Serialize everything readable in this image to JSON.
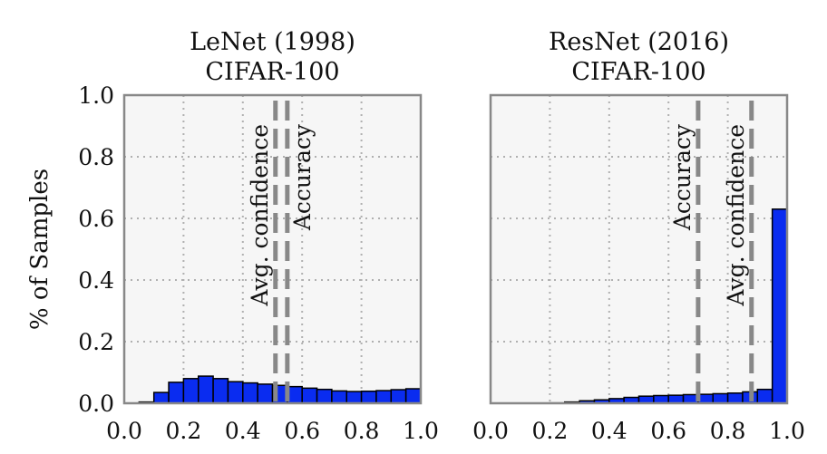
{
  "y_axis_label": "% of Samples",
  "chart_data": [
    {
      "type": "bar",
      "title_lines": [
        "LeNet (1998)",
        "CIFAR-100"
      ],
      "xlim": [
        0,
        1
      ],
      "ylim": [
        0,
        1
      ],
      "x_ticks": [
        "0.0",
        "0.2",
        "0.4",
        "0.6",
        "0.8",
        "1.0"
      ],
      "y_ticks": [
        "0.0",
        "0.2",
        "0.4",
        "0.6",
        "0.8",
        "1.0"
      ],
      "grid": true,
      "bin_width": 0.05,
      "bin_left_edges": [
        0.0,
        0.05,
        0.1,
        0.15,
        0.2,
        0.25,
        0.3,
        0.35,
        0.4,
        0.45,
        0.5,
        0.55,
        0.6,
        0.65,
        0.7,
        0.75,
        0.8,
        0.85,
        0.9,
        0.95
      ],
      "values": [
        0.0,
        0.004,
        0.035,
        0.068,
        0.08,
        0.088,
        0.08,
        0.07,
        0.066,
        0.062,
        0.058,
        0.054,
        0.049,
        0.045,
        0.04,
        0.038,
        0.039,
        0.041,
        0.044,
        0.047
      ],
      "reference_lines": [
        {
          "label": "Avg. confidence",
          "x": 0.51,
          "label_side": "left"
        },
        {
          "label": "Accuracy",
          "x": 0.55,
          "label_side": "right"
        }
      ]
    },
    {
      "type": "bar",
      "title_lines": [
        "ResNet (2016)",
        "CIFAR-100"
      ],
      "xlim": [
        0,
        1
      ],
      "ylim": [
        0,
        1
      ],
      "x_ticks": [
        "0.0",
        "0.2",
        "0.4",
        "0.6",
        "0.8",
        "1.0"
      ],
      "grid": true,
      "bin_width": 0.05,
      "bin_left_edges": [
        0.0,
        0.05,
        0.1,
        0.15,
        0.2,
        0.25,
        0.3,
        0.35,
        0.4,
        0.45,
        0.5,
        0.55,
        0.6,
        0.65,
        0.7,
        0.75,
        0.8,
        0.85,
        0.9,
        0.95
      ],
      "values": [
        0.0,
        0.0,
        0.0,
        0.0,
        0.001,
        0.004,
        0.008,
        0.011,
        0.015,
        0.019,
        0.023,
        0.025,
        0.026,
        0.028,
        0.029,
        0.031,
        0.033,
        0.037,
        0.045,
        0.63
      ],
      "reference_lines": [
        {
          "label": "Accuracy",
          "x": 0.7,
          "label_side": "left"
        },
        {
          "label": "Avg. confidence",
          "x": 0.88,
          "label_side": "left"
        }
      ]
    }
  ],
  "colors": {
    "bar_fill": "#0a2cf0",
    "bar_edge": "#000000",
    "panel_bg": "#f6f6f6",
    "frame": "#888888",
    "grid": "#b0b0b0",
    "reference_line": "#888888"
  }
}
